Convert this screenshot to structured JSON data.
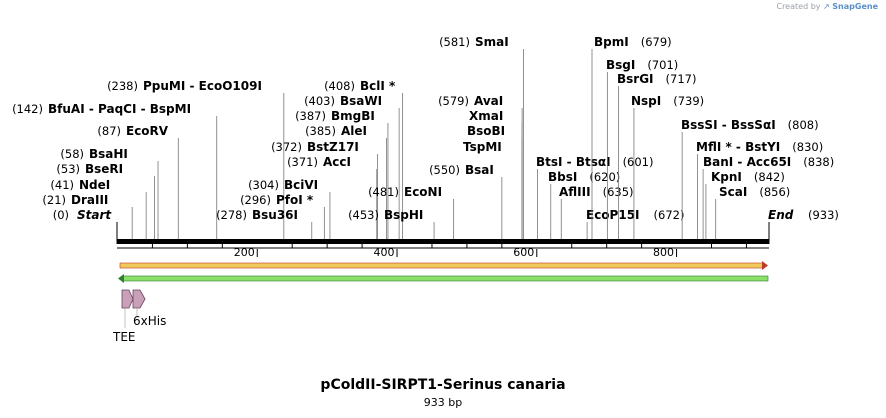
{
  "credit": {
    "text": "Created by",
    "logo": "SnapGene"
  },
  "plasmid": {
    "name": "pColdII-SIRPT1-Serinus canaria",
    "length_label": "933 bp"
  },
  "sequence": {
    "length": 933,
    "ticks": [
      "200",
      "400",
      "600",
      "800"
    ],
    "ends": {
      "start": "Start",
      "start_pos": "(0)",
      "end": "End",
      "end_pos": "(933)"
    }
  },
  "sites": [
    {
      "name": "DraIII",
      "pos": 21,
      "pos_label": "(21)"
    },
    {
      "name": "NdeI",
      "pos": 41,
      "pos_label": "(41)"
    },
    {
      "name": "BseRI",
      "pos": 53,
      "pos_label": "(53)"
    },
    {
      "name": "BsaHI",
      "pos": 58,
      "pos_label": "(58)"
    },
    {
      "name": "EcoRV",
      "pos": 87,
      "pos_label": "(87)"
    },
    {
      "name": "BfuAI - PaqCI - BspMI",
      "pos": 142,
      "pos_label": "(142)"
    },
    {
      "name": "PpuMI - EcoO109I",
      "pos": 238,
      "pos_label": "(238)"
    },
    {
      "name": "Bsu36I",
      "pos": 278,
      "pos_label": "(278)"
    },
    {
      "name": "PfoI *",
      "pos": 296,
      "pos_label": "(296)"
    },
    {
      "name": "BciVI",
      "pos": 304,
      "pos_label": "(304)"
    },
    {
      "name": "AccI",
      "pos": 371,
      "pos_label": "(371)"
    },
    {
      "name": "BstZ17I",
      "pos": 372,
      "pos_label": "(372)"
    },
    {
      "name": "AleI",
      "pos": 385,
      "pos_label": "(385)"
    },
    {
      "name": "BmgBI",
      "pos": 387,
      "pos_label": "(387)"
    },
    {
      "name": "BsaWI",
      "pos": 403,
      "pos_label": "(403)"
    },
    {
      "name": "BclI *",
      "pos": 408,
      "pos_label": "(408)"
    },
    {
      "name": "BspHI",
      "pos": 453,
      "pos_label": "(453)"
    },
    {
      "name": "EcoNI",
      "pos": 481,
      "pos_label": "(481)"
    },
    {
      "name": "BsaI",
      "pos": 550,
      "pos_label": "(550)"
    },
    {
      "name": "TspMI",
      "pos": 579
    },
    {
      "name": "BsoBI",
      "pos": 579
    },
    {
      "name": "XmaI",
      "pos": 579
    },
    {
      "name": "AvaI",
      "pos": 579,
      "pos_label": "(579)"
    },
    {
      "name": "SmaI",
      "pos": 581,
      "pos_label": "(581)"
    },
    {
      "name": "BtsI - BtsαI",
      "pos": 601,
      "pos_label": "(601)"
    },
    {
      "name": "BbsI",
      "pos": 620,
      "pos_label": "(620)"
    },
    {
      "name": "AflIII",
      "pos": 635,
      "pos_label": "(635)"
    },
    {
      "name": "EcoP15I",
      "pos": 672,
      "pos_label": "(672)"
    },
    {
      "name": "BpmI",
      "pos": 679,
      "pos_label": "(679)"
    },
    {
      "name": "BsgI",
      "pos": 701,
      "pos_label": "(701)"
    },
    {
      "name": "BsrGI",
      "pos": 717,
      "pos_label": "(717)"
    },
    {
      "name": "NspI",
      "pos": 739,
      "pos_label": "(739)"
    },
    {
      "name": "BssSI - BssSαI",
      "pos": 808,
      "pos_label": "(808)"
    },
    {
      "name": "MflI * - BstYI",
      "pos": 830,
      "pos_label": "(830)"
    },
    {
      "name": "BanI - Acc65I",
      "pos": 838,
      "pos_label": "(838)"
    },
    {
      "name": "KpnI",
      "pos": 842,
      "pos_label": "(842)"
    },
    {
      "name": "ScaI",
      "pos": 856,
      "pos_label": "(856)"
    }
  ],
  "features": [
    {
      "name": "TEE",
      "color": "#c8a0b8"
    },
    {
      "name": "6xHis",
      "color": "#c8a0b8"
    }
  ],
  "colors": {
    "forward_arrow": "#f0c95c",
    "reverse_arrow": "#8be06a",
    "backbone": "#000000",
    "feature": "#c8a0b8"
  }
}
